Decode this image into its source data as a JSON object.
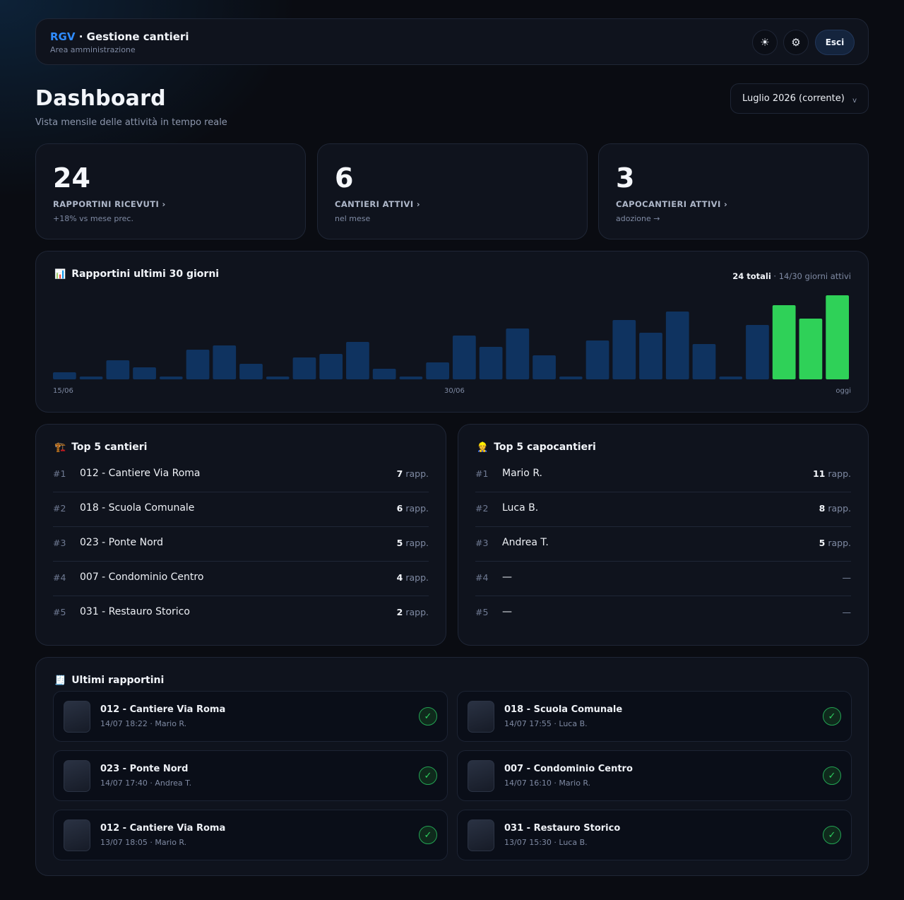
{
  "header": {
    "brand": "RGV",
    "brand_sep": " · ",
    "app_name": "Gestione cantieri",
    "subtitle": "Area amministrazione",
    "theme_icon": "sun-icon",
    "settings_icon": "gear-icon",
    "logout_label": "Esci"
  },
  "page": {
    "title": "Dashboard",
    "subtitle": "Vista mensile delle attività in tempo reale",
    "month_selected": "Luglio 2026 (corrente)",
    "month_chevron": "v"
  },
  "stats": [
    {
      "value": "24",
      "label": "RAPPORTINI RICEVUTI ›",
      "note": "+18% vs mese prec."
    },
    {
      "value": "6",
      "label": "CANTIERI ATTIVI ›",
      "note": "nel mese"
    },
    {
      "value": "3",
      "label": "CAPOCANTIERI ATTIVI ›",
      "note": "adozione →"
    }
  ],
  "chart": {
    "emoji": "📊",
    "title": "Rapportini ultimi 30 giorni",
    "total": "24 totali",
    "active_days": " · 14/30 giorni attivi",
    "x_start": "15/06",
    "x_mid": "30/06",
    "x_end": "oggi"
  },
  "chart_data": {
    "type": "bar",
    "values": [
      10,
      4,
      27,
      17,
      4,
      42,
      48,
      22,
      4,
      31,
      36,
      53,
      15,
      4,
      24,
      62,
      46,
      72,
      34,
      4,
      55,
      84,
      66,
      96,
      50,
      4,
      77,
      105,
      86,
      119
    ],
    "highlight_last": 3,
    "colors": {
      "default": "#0f3360",
      "highlight": "#2fd158"
    },
    "grid": false
  },
  "top_cantieri": {
    "emoji": "🏗️",
    "title": "Top 5 cantieri",
    "unit": " rapp.",
    "items": [
      {
        "rank": "#1",
        "name": "012 - Cantiere Via Roma",
        "count": "7"
      },
      {
        "rank": "#2",
        "name": "018 - Scuola Comunale",
        "count": "6"
      },
      {
        "rank": "#3",
        "name": "023 - Ponte Nord",
        "count": "5"
      },
      {
        "rank": "#4",
        "name": "007 - Condominio Centro",
        "count": "4"
      },
      {
        "rank": "#5",
        "name": "031 - Restauro Storico",
        "count": "2"
      }
    ]
  },
  "top_capocantieri": {
    "emoji": "👷",
    "title": "Top 5 capocantieri",
    "unit": " rapp.",
    "items": [
      {
        "rank": "#1",
        "name": "Mario R.",
        "count": "11"
      },
      {
        "rank": "#2",
        "name": "Luca B.",
        "count": "8"
      },
      {
        "rank": "#3",
        "name": "Andrea T.",
        "count": "5"
      },
      {
        "rank": "#4",
        "name": "—",
        "empty": "—"
      },
      {
        "rank": "#5",
        "name": "—",
        "empty": "—"
      }
    ]
  },
  "latest": {
    "emoji": "🧾",
    "title": "Ultimi rapportini",
    "status_icon": "check-icon",
    "items": [
      {
        "title": "012 - Cantiere Via Roma",
        "meta": "14/07 18:22 · Mario R."
      },
      {
        "title": "018 - Scuola Comunale",
        "meta": "14/07 17:55 · Luca B."
      },
      {
        "title": "023 - Ponte Nord",
        "meta": "14/07 17:40 · Andrea T."
      },
      {
        "title": "007 - Condominio Centro",
        "meta": "14/07 16:10 · Mario R."
      },
      {
        "title": "012 - Cantiere Via Roma",
        "meta": "13/07 18:05 · Mario R."
      },
      {
        "title": "031 - Restauro Storico",
        "meta": "13/07 15:30 · Luca B."
      }
    ]
  }
}
